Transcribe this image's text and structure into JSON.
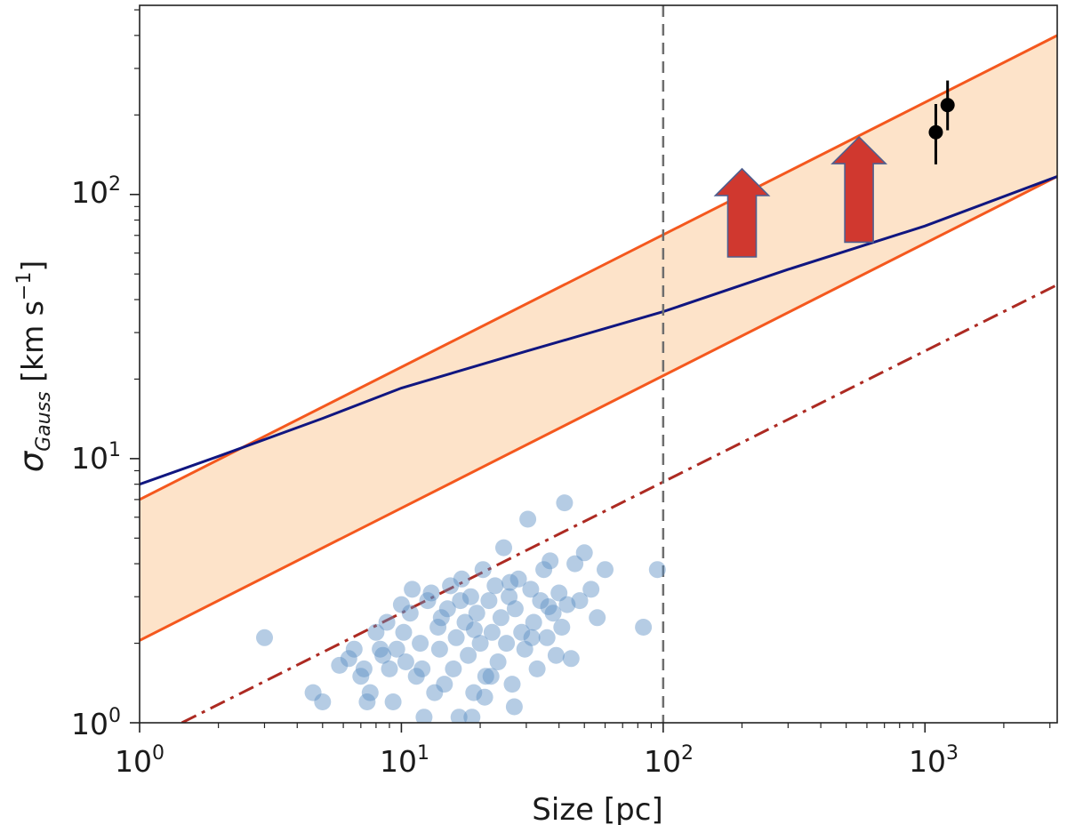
{
  "chart_data": {
    "type": "scatter",
    "xscale": "log",
    "yscale": "log",
    "xlim": [
      1,
      3200
    ],
    "ylim": [
      1,
      520
    ],
    "xlabel": "Size [pc]",
    "ylabel": {
      "sigma": "σ",
      "sub": "Gauss",
      "units": " [km s",
      "exp": "−1",
      "close": "]"
    },
    "x_ticks": [
      {
        "base": "10",
        "exp": "0",
        "value": 1
      },
      {
        "base": "10",
        "exp": "1",
        "value": 10
      },
      {
        "base": "10",
        "exp": "2",
        "value": 100
      },
      {
        "base": "10",
        "exp": "3",
        "value": 1000
      }
    ],
    "y_ticks": [
      {
        "base": "10",
        "exp": "0",
        "value": 1
      },
      {
        "base": "10",
        "exp": "1",
        "value": 10
      },
      {
        "base": "10",
        "exp": "2",
        "value": 100
      }
    ],
    "colors": {
      "band_fill": "#fde3c9",
      "band_edge": "#f4581e",
      "model_line": "#101680",
      "dashdot_line": "#ad2a22",
      "scatter": "#5b8fc4",
      "points": "#000000",
      "arrows": "#d0382f",
      "arrow_edge": "#4f5f8f",
      "vline": "#6e6e6e"
    },
    "band": {
      "upper": [
        [
          1,
          7.0
        ],
        [
          3200,
          400
        ]
      ],
      "lower": [
        [
          1,
          2.05
        ],
        [
          3200,
          117
        ]
      ]
    },
    "model_curve": [
      [
        1,
        8.0
      ],
      [
        2,
        10.2
      ],
      [
        5,
        14.2
      ],
      [
        10,
        18.5
      ],
      [
        30,
        25.5
      ],
      [
        100,
        36
      ],
      [
        300,
        52
      ],
      [
        1000,
        76
      ],
      [
        3200,
        117
      ]
    ],
    "dashdot_line": [
      [
        1.45,
        1.0
      ],
      [
        3200,
        45.5
      ]
    ],
    "vline_x": 100,
    "arrows": [
      {
        "x": 200,
        "y_base": 58,
        "y_tip": 125
      },
      {
        "x": 560,
        "y_base": 66,
        "y_tip": 165
      }
    ],
    "points": [
      {
        "x": 1100,
        "y": 172,
        "y_err_low": 130,
        "y_err_high": 220
      },
      {
        "x": 1220,
        "y": 218,
        "y_err_low": 175,
        "y_err_high": 270
      }
    ],
    "scatter": [
      [
        3.0,
        2.1
      ],
      [
        4.6,
        1.3
      ],
      [
        5.0,
        1.2
      ],
      [
        5.8,
        1.65
      ],
      [
        6.3,
        1.75
      ],
      [
        6.6,
        1.9
      ],
      [
        7.2,
        1.6
      ],
      [
        7.4,
        1.2
      ],
      [
        7.6,
        1.3
      ],
      [
        8.0,
        2.2
      ],
      [
        8.3,
        1.9
      ],
      [
        8.8,
        2.4
      ],
      [
        9.0,
        1.6
      ],
      [
        9.3,
        1.2
      ],
      [
        9.6,
        1.9
      ],
      [
        10.0,
        2.8
      ],
      [
        10.4,
        1.7
      ],
      [
        10.8,
        2.6
      ],
      [
        11.0,
        3.2
      ],
      [
        11.4,
        1.5
      ],
      [
        11.8,
        2.0
      ],
      [
        12.2,
        1.05
      ],
      [
        12.6,
        2.9
      ],
      [
        13.0,
        3.1
      ],
      [
        13.4,
        1.3
      ],
      [
        13.8,
        2.3
      ],
      [
        14.0,
        1.9
      ],
      [
        14.6,
        1.4
      ],
      [
        15.0,
        2.7
      ],
      [
        15.4,
        3.3
      ],
      [
        15.8,
        1.6
      ],
      [
        16.2,
        2.1
      ],
      [
        16.6,
        1.05
      ],
      [
        17.0,
        3.5
      ],
      [
        17.5,
        2.4
      ],
      [
        18.0,
        1.8
      ],
      [
        18.4,
        3.0
      ],
      [
        18.9,
        1.3
      ],
      [
        19.4,
        2.6
      ],
      [
        20.0,
        2.0
      ],
      [
        20.5,
        3.8
      ],
      [
        21.0,
        1.5
      ],
      [
        21.6,
        2.9
      ],
      [
        22.2,
        2.2
      ],
      [
        22.8,
        3.3
      ],
      [
        23.4,
        1.7
      ],
      [
        24.0,
        2.5
      ],
      [
        24.6,
        4.6
      ],
      [
        25.2,
        2.0
      ],
      [
        25.8,
        3.0
      ],
      [
        26.5,
        1.4
      ],
      [
        27.2,
        2.7
      ],
      [
        28.0,
        3.5
      ],
      [
        28.8,
        2.2
      ],
      [
        29.6,
        1.9
      ],
      [
        30.4,
        5.9
      ],
      [
        31.2,
        3.2
      ],
      [
        32.0,
        2.4
      ],
      [
        33.0,
        1.6
      ],
      [
        34.0,
        2.9
      ],
      [
        35.0,
        3.8
      ],
      [
        36.0,
        2.1
      ],
      [
        37.0,
        4.1
      ],
      [
        38.0,
        2.6
      ],
      [
        39.0,
        1.8
      ],
      [
        40.0,
        3.1
      ],
      [
        41.0,
        2.3
      ],
      [
        42.0,
        6.8
      ],
      [
        43.0,
        2.8
      ],
      [
        44.5,
        1.75
      ],
      [
        46.0,
        4.0
      ],
      [
        48.0,
        2.9
      ],
      [
        50.0,
        4.4
      ],
      [
        53.0,
        3.2
      ],
      [
        56.0,
        2.5
      ],
      [
        60.0,
        3.8
      ],
      [
        84.0,
        2.3
      ],
      [
        95.0,
        3.8
      ],
      [
        7.0,
        1.5
      ],
      [
        8.5,
        1.8
      ],
      [
        10.2,
        2.2
      ],
      [
        12.0,
        1.6
      ],
      [
        14.2,
        2.5
      ],
      [
        16.8,
        2.9
      ],
      [
        19.0,
        2.25
      ],
      [
        22.0,
        1.5
      ],
      [
        26.0,
        3.4
      ],
      [
        31.5,
        2.1
      ],
      [
        36.5,
        2.75
      ],
      [
        27.0,
        1.15
      ],
      [
        20.8,
        1.25
      ],
      [
        18.6,
        1.05
      ]
    ]
  }
}
